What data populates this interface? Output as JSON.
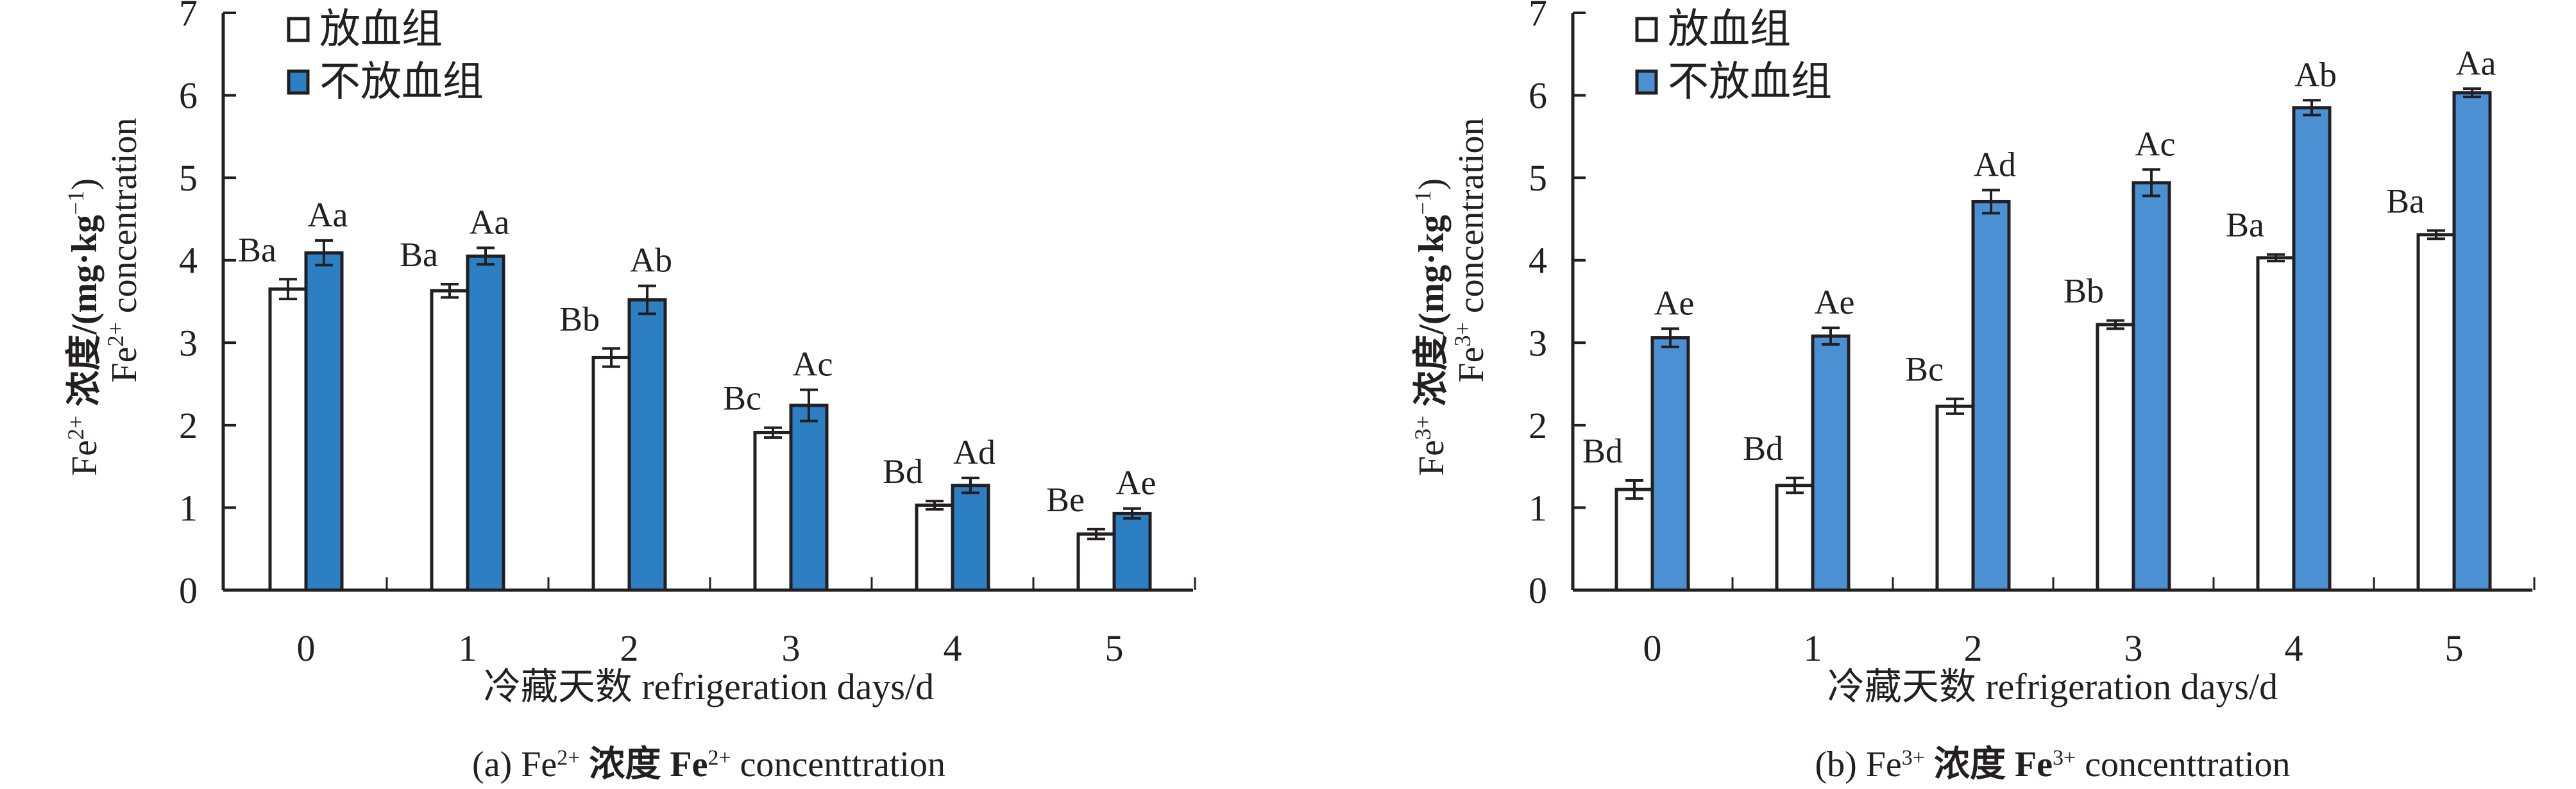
{
  "chart_data": [
    {
      "type": "bar",
      "panel": "a",
      "caption": {
        "prefix": "(a) Fe",
        "sup1": "2+",
        "zh": " 浓度 Fe",
        "sup2": "2+",
        "en": " concenttration"
      },
      "ylabel": {
        "line1_prefix": "Fe",
        "line1_sup": "2+",
        "line1_rest": " 浓度/(mg·kg",
        "line1_sup2": "−1",
        "line1_end": ")",
        "line2_prefix": "Fe",
        "line2_sup": "2+",
        "line2_rest": " concentration"
      },
      "xlabel": "冷藏天数 refrigeration days/d",
      "categories": [
        "0",
        "1",
        "2",
        "3",
        "4",
        "5"
      ],
      "ylim": [
        0,
        7
      ],
      "yticks": [
        "0",
        "1",
        "2",
        "3",
        "4",
        "5",
        "6",
        "7"
      ],
      "legend": {
        "position": "top-left",
        "entries": [
          "放血组",
          "不放血组"
        ]
      },
      "colors": {
        "bled": "#ffffff",
        "unbled": "#2b7fc2"
      },
      "series": [
        {
          "name": "放血组",
          "values": [
            3.65,
            3.63,
            2.82,
            1.91,
            1.03,
            0.68
          ],
          "errors": [
            0.12,
            0.08,
            0.11,
            0.06,
            0.05,
            0.06
          ],
          "labels": [
            "Ba",
            "Ba",
            "Bb",
            "Bc",
            "Bd",
            "Be"
          ]
        },
        {
          "name": "不放血组",
          "values": [
            4.09,
            4.05,
            3.52,
            2.24,
            1.27,
            0.93
          ],
          "errors": [
            0.15,
            0.1,
            0.17,
            0.19,
            0.09,
            0.06
          ],
          "labels": [
            "Aa",
            "Aa",
            "Ab",
            "Ac",
            "Ad",
            "Ae"
          ]
        }
      ]
    },
    {
      "type": "bar",
      "panel": "b",
      "caption": {
        "prefix": "(b) Fe",
        "sup1": "3+",
        "zh": " 浓度 Fe",
        "sup2": "3+",
        "en": " concenttration"
      },
      "ylabel": {
        "line1_prefix": "Fe",
        "line1_sup": "3+",
        "line1_rest": " 浓度/(mg·kg",
        "line1_sup2": "−1",
        "line1_end": ")",
        "line2_prefix": "Fe",
        "line2_sup": "3+",
        "line2_rest": " concentration"
      },
      "xlabel": "冷藏天数 refrigeration days/d",
      "categories": [
        "0",
        "1",
        "2",
        "3",
        "4",
        "5"
      ],
      "ylim": [
        0,
        7
      ],
      "yticks": [
        "0",
        "1",
        "2",
        "3",
        "4",
        "5",
        "6",
        "7"
      ],
      "legend": {
        "position": "top-left",
        "entries": [
          "放血组",
          "不放血组"
        ]
      },
      "colors": {
        "bled": "#ffffff",
        "unbled": "#4a90d2"
      },
      "series": [
        {
          "name": "放血组",
          "values": [
            1.22,
            1.27,
            2.23,
            3.22,
            4.03,
            4.31
          ],
          "errors": [
            0.11,
            0.09,
            0.09,
            0.05,
            0.04,
            0.05
          ],
          "labels": [
            "Bd",
            "Bd",
            "Bc",
            "Bb",
            "Ba",
            "Ba"
          ]
        },
        {
          "name": "不放血组",
          "values": [
            3.06,
            3.08,
            4.71,
            4.94,
            5.85,
            6.03
          ],
          "errors": [
            0.11,
            0.1,
            0.14,
            0.16,
            0.09,
            0.05
          ],
          "labels": [
            "Ae",
            "Ae",
            "Ad",
            "Ac",
            "Ab",
            "Aa"
          ]
        }
      ]
    }
  ]
}
